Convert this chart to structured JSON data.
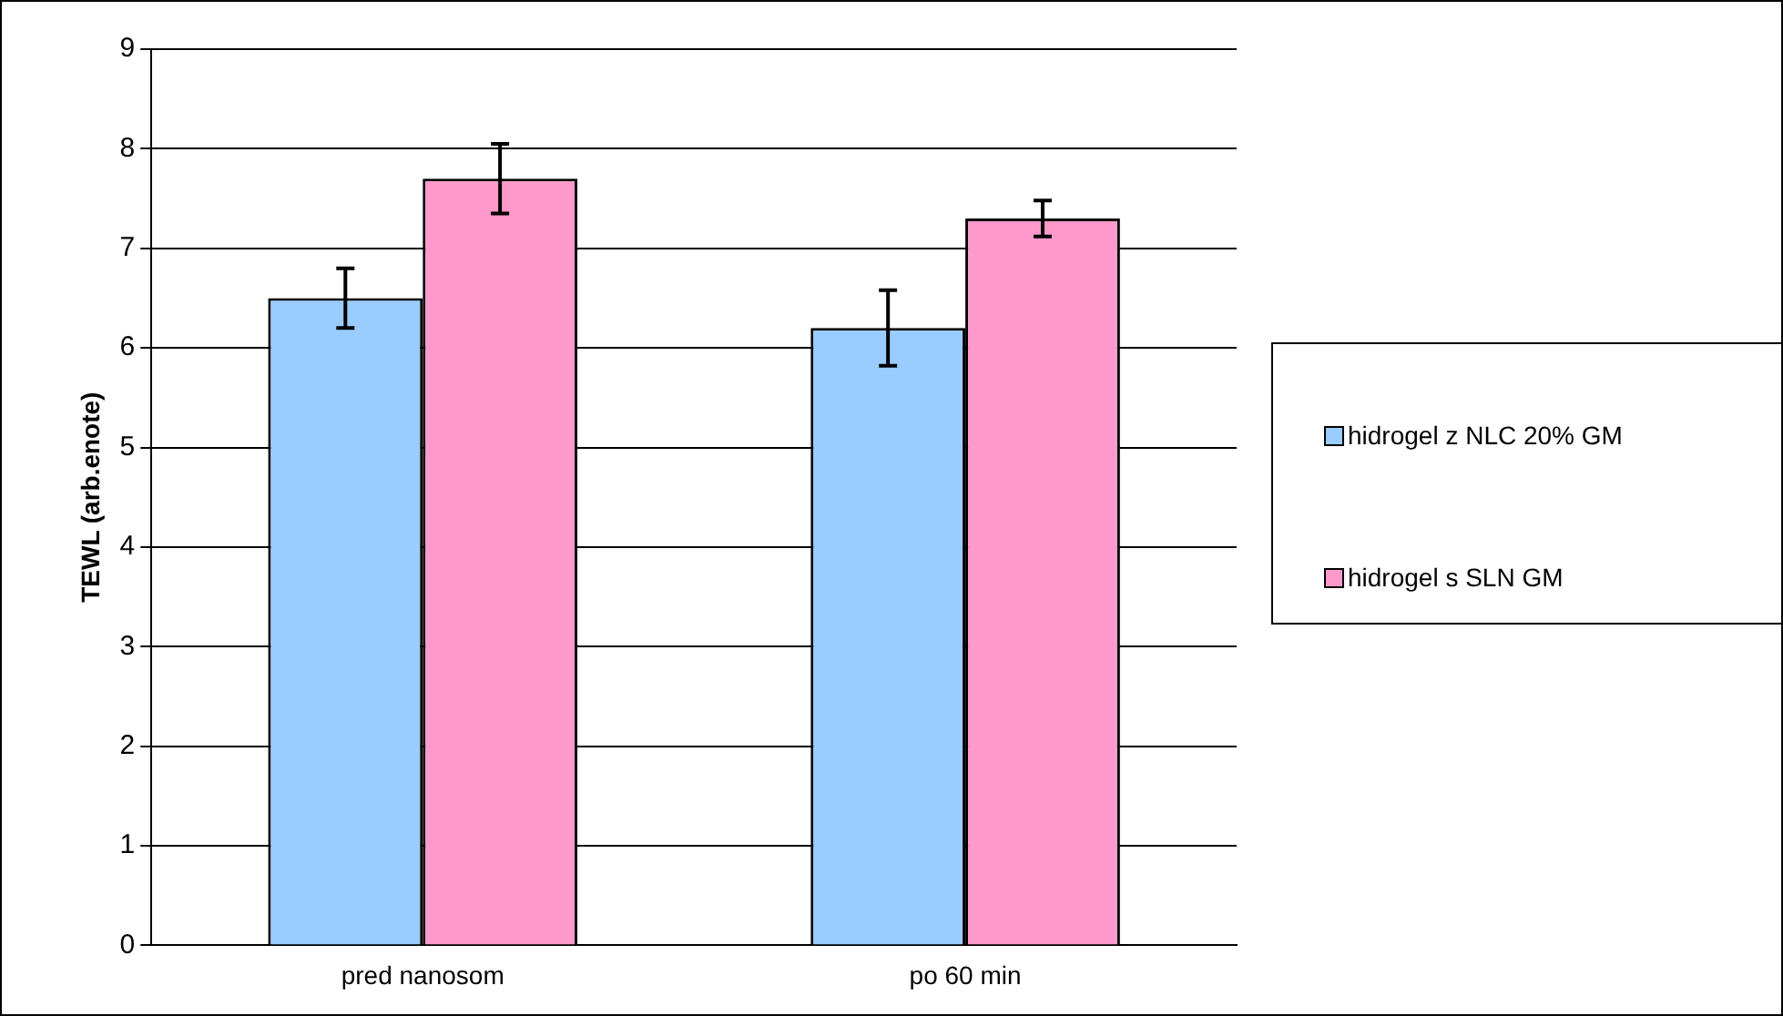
{
  "chart_data": {
    "type": "bar",
    "ylabel": "TEWL (arb.enote)",
    "categories": [
      "pred nanosom",
      "po 60 min"
    ],
    "series": [
      {
        "name": "hidrogel z NLC 20% GM",
        "color": "#99ccff",
        "values": [
          6.5,
          6.2
        ],
        "errors": [
          0.3,
          0.38
        ]
      },
      {
        "name": "hidrogel s SLN GM",
        "color": "#ff99cc",
        "values": [
          7.7,
          7.3
        ],
        "errors": [
          0.35,
          0.18
        ]
      }
    ],
    "ylim": [
      0,
      9
    ],
    "yticks": [
      0,
      1,
      2,
      3,
      4,
      5,
      6,
      7,
      8,
      9
    ],
    "grid": "y",
    "legend": "right"
  }
}
